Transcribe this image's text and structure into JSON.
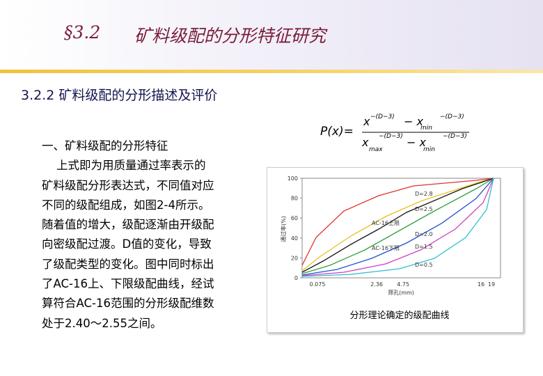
{
  "header": {
    "section": "§3.2",
    "title": "矿料级配的分形特征研究"
  },
  "subtitle": "3.2.2 矿料级配的分形描述及评价",
  "formula": {
    "lhs": "P(x)=",
    "num_x": "x",
    "num_exp": "−(D−3)",
    "num_minus": "− x",
    "num_min": "min",
    "num_exp2": "−(D−3)",
    "den_x": "x",
    "den_max": "max",
    "den_exp": "−(D−3)",
    "den_minus": "− x",
    "den_min": "min",
    "den_exp2": "−(D−3)"
  },
  "body": [
    "一、矿料级配的分形特征",
    "    上式即为用质量通过率表示的",
    "矿料级配分形表达式，不同值对应",
    "不同的级配组成，如图2-4所示。",
    "随着值的增大，级配逐渐由开级配",
    "向密级配过渡。D值的变化，导致",
    "了级配类型的变化。图中同时标出",
    "了AC-16上、下限级配曲线，经试",
    "算符合AC-16范围的分形级配维数",
    "处于2.40～2.55之间。"
  ],
  "figure": {
    "y_label": "通过率(%)",
    "x_label": "筛孔(mm)",
    "yticks": [
      0,
      20,
      40,
      60,
      80,
      100
    ],
    "xticks": [
      "0.075",
      "2.36",
      "4.75",
      "16",
      "19"
    ],
    "curve_labels": [
      "D=2.8",
      "D=2.5",
      "AC-16上限",
      "D=2.0",
      "AC-16下限",
      "D=1.5",
      "D=0.5"
    ],
    "caption": "分形理论确定的级配曲线"
  }
}
